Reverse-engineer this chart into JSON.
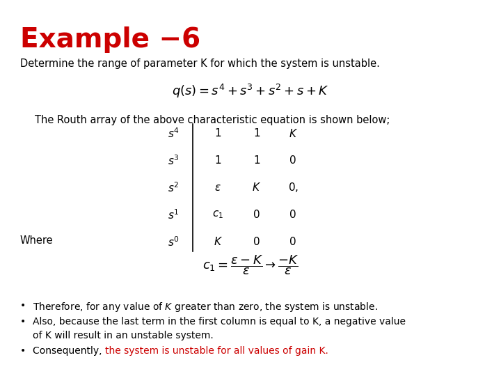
{
  "title": "Example −6",
  "title_color": "#CC0000",
  "background_color": "#ffffff",
  "subtitle": "Determine the range of parameter K for which the system is unstable.",
  "equation1": "$q(s) = s^4 + s^3 + s^2 + s + K$",
  "routh_text": "The Routh array of the above characteristic equation is shown below;",
  "where_text": "Where",
  "c1_equation": "$c_1 = \\dfrac{\\epsilon - K}{\\epsilon} \\rightarrow \\dfrac{-K}{\\epsilon}$",
  "bullet1": "Therefore, for any value of $K$ greater than zero, the system is unstable.",
  "bullet2_line1": "Also, because the last term in the first column is equal to K, a negative value",
  "bullet2_line2": "of K will result in an unstable system.",
  "bullet3_black": "Consequently, ",
  "bullet3_red": "the system is unstable for all values of gain K.",
  "red_color": "#CC0000",
  "black_color": "#000000",
  "routh_rows": [
    [
      "$s^4$",
      "1",
      "1",
      "$K$"
    ],
    [
      "$s^3$",
      "1",
      "1",
      "0"
    ],
    [
      "$s^2$",
      "$\\epsilon$",
      "$K$",
      "$0,$"
    ],
    [
      "$s^1$",
      "$c_1$",
      "0",
      "0"
    ],
    [
      "$s^0$",
      "$K$",
      "0",
      "0"
    ]
  ],
  "fig_width": 7.2,
  "fig_height": 5.4,
  "dpi": 100
}
